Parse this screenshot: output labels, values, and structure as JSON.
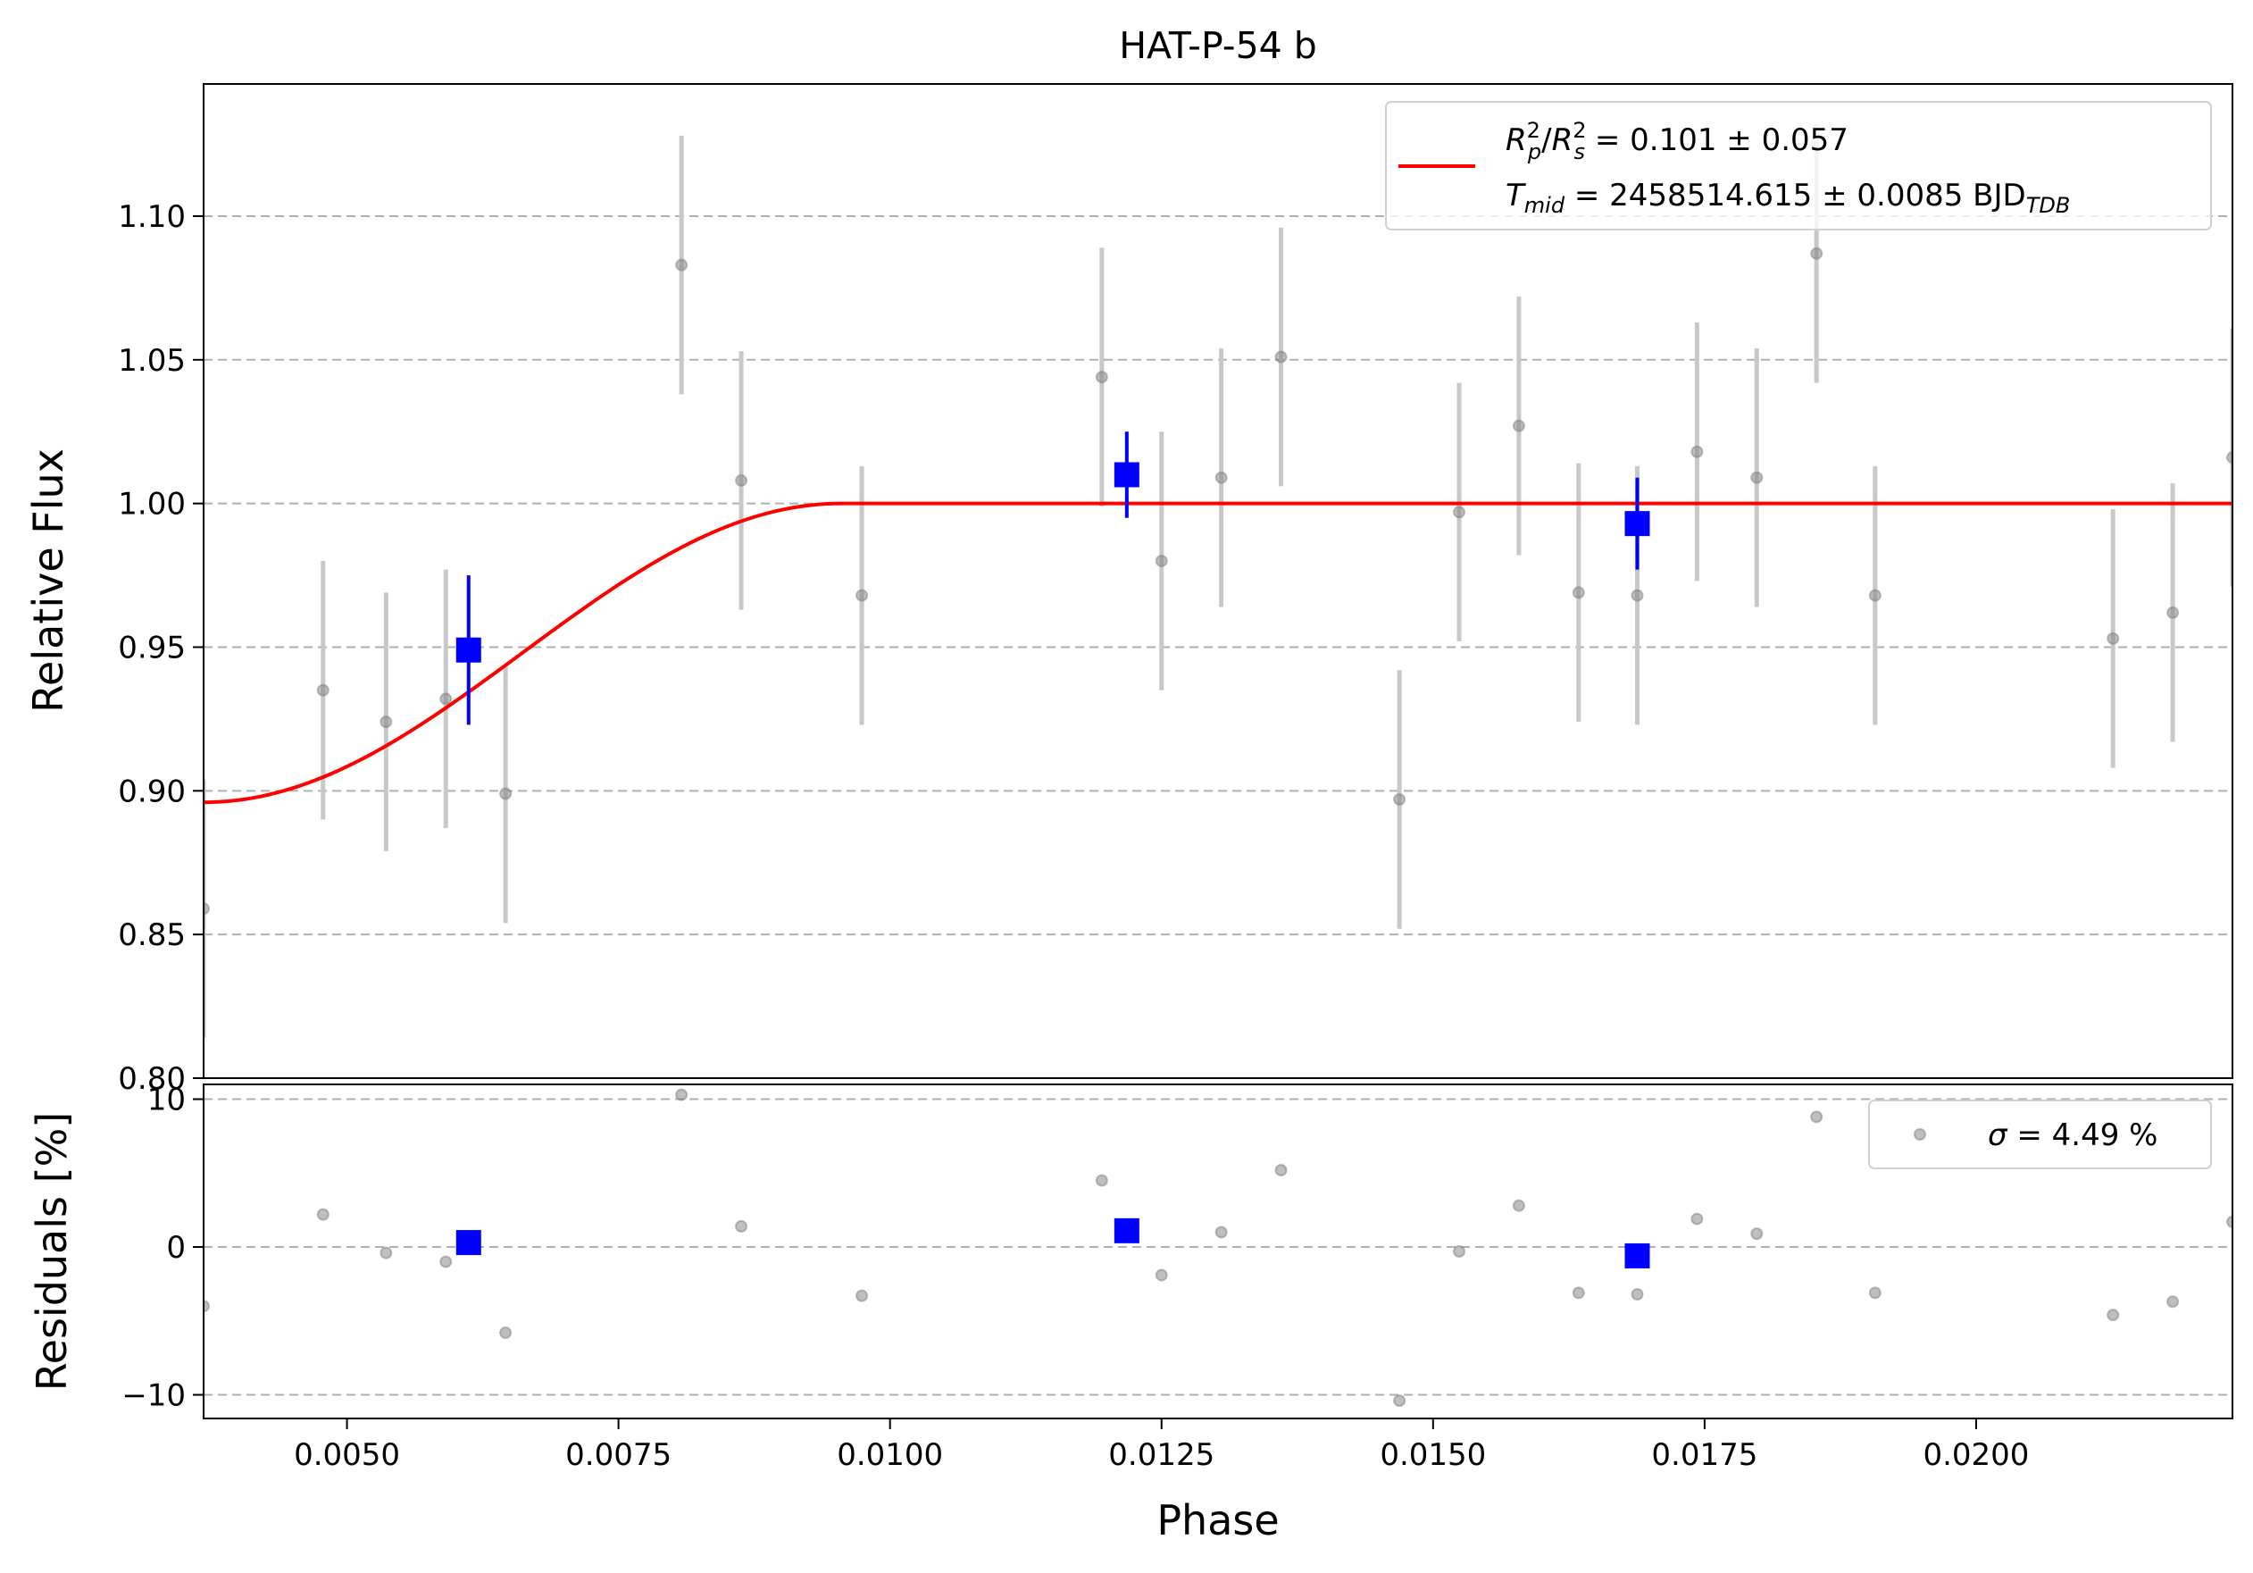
{
  "chart_data": [
    {
      "type": "scatter",
      "panel": "main",
      "title": "HAT-P-54 b",
      "xlabel": "",
      "ylabel": "Relative Flux",
      "xlim": [
        0.00368,
        0.02236
      ],
      "ylim": [
        0.8,
        1.146
      ],
      "yticks": [
        0.8,
        0.85,
        0.9,
        0.95,
        1.0,
        1.05,
        1.1
      ],
      "ytick_labels": [
        "0.80",
        "0.85",
        "0.90",
        "0.95",
        "1.00",
        "1.05",
        "1.10"
      ],
      "grid": "y-dashed",
      "legend_position": "top-right",
      "legend": {
        "line1": {
          "ratio_label_R": "R",
          "ratio_label_p": "p",
          "ratio_label_s": "s",
          "exp": "2",
          "slash": "/",
          "text": " = 0.101 ± 0.057"
        },
        "line2": {
          "T": "T",
          "mid": "mid",
          "text": " = 2458514.615 ± 0.0085 BJD",
          "sub": "TDB"
        }
      },
      "colors": {
        "data": "#808080",
        "error": "#c8c8c8",
        "binned": "#0000ff",
        "model": "#ff0000"
      },
      "series": [
        {
          "kind": "data",
          "points": [
            {
              "x": 0.00368,
              "y": 0.859,
              "err": 0.045
            },
            {
              "x": 0.00478,
              "y": 0.935,
              "err": 0.045
            },
            {
              "x": 0.00536,
              "y": 0.924,
              "err": 0.045
            },
            {
              "x": 0.00591,
              "y": 0.932,
              "err": 0.045
            },
            {
              "x": 0.00646,
              "y": 0.899,
              "err": 0.045
            },
            {
              "x": 0.00808,
              "y": 1.083,
              "err": 0.045
            },
            {
              "x": 0.00863,
              "y": 1.008,
              "err": 0.045
            },
            {
              "x": 0.00974,
              "y": 0.968,
              "err": 0.045
            },
            {
              "x": 0.01195,
              "y": 1.044,
              "err": 0.045
            },
            {
              "x": 0.0125,
              "y": 0.98,
              "err": 0.045
            },
            {
              "x": 0.01305,
              "y": 1.009,
              "err": 0.045
            },
            {
              "x": 0.0136,
              "y": 1.051,
              "err": 0.045
            },
            {
              "x": 0.01469,
              "y": 0.897,
              "err": 0.045
            },
            {
              "x": 0.01524,
              "y": 0.997,
              "err": 0.045
            },
            {
              "x": 0.01579,
              "y": 1.027,
              "err": 0.045
            },
            {
              "x": 0.01634,
              "y": 0.969,
              "err": 0.045
            },
            {
              "x": 0.01688,
              "y": 0.968,
              "err": 0.045
            },
            {
              "x": 0.01743,
              "y": 1.018,
              "err": 0.045
            },
            {
              "x": 0.01798,
              "y": 1.009,
              "err": 0.045
            },
            {
              "x": 0.01853,
              "y": 1.087,
              "err": 0.045
            },
            {
              "x": 0.01907,
              "y": 0.968,
              "err": 0.045
            },
            {
              "x": 0.02126,
              "y": 0.953,
              "err": 0.045
            },
            {
              "x": 0.02181,
              "y": 0.962,
              "err": 0.045
            },
            {
              "x": 0.02236,
              "y": 1.016,
              "err": 0.045
            }
          ]
        },
        {
          "kind": "binned",
          "points": [
            {
              "x": 0.00612,
              "y": 0.949,
              "err": 0.026
            },
            {
              "x": 0.01218,
              "y": 1.01,
              "err": 0.015
            },
            {
              "x": 0.01688,
              "y": 0.993,
              "err": 0.016
            }
          ]
        },
        {
          "kind": "model",
          "transit_depth": 0.104,
          "egress_end": 0.00955,
          "curve_start": 0.00368
        }
      ]
    },
    {
      "type": "scatter",
      "panel": "residuals",
      "xlabel": "Phase",
      "ylabel": "Residuals [%]",
      "xlim": [
        0.00368,
        0.02236
      ],
      "ylim": [
        -11.6,
        11.0
      ],
      "yticks": [
        -10,
        0,
        10
      ],
      "ytick_labels": [
        "−10",
        "0",
        "10"
      ],
      "xticks": [
        0.005,
        0.0075,
        0.01,
        0.0125,
        0.015,
        0.0175,
        0.02
      ],
      "xtick_labels": [
        "0.0050",
        "0.0075",
        "0.0100",
        "0.0125",
        "0.0150",
        "0.0175",
        "0.0200"
      ],
      "grid": "y-dashed",
      "legend_position": "top-right",
      "legend": {
        "sigma": "σ",
        "text": " = 4.49 %"
      },
      "series": [
        {
          "kind": "data",
          "points": [
            {
              "x": 0.00368,
              "y": -4.0
            },
            {
              "x": 0.00478,
              "y": 2.2
            },
            {
              "x": 0.00536,
              "y": -0.4
            },
            {
              "x": 0.00591,
              "y": -1.0
            },
            {
              "x": 0.00646,
              "y": -5.8
            },
            {
              "x": 0.00808,
              "y": 10.3
            },
            {
              "x": 0.00863,
              "y": 1.4
            },
            {
              "x": 0.00974,
              "y": -3.3
            },
            {
              "x": 0.01195,
              "y": 4.5
            },
            {
              "x": 0.0125,
              "y": -1.9
            },
            {
              "x": 0.01305,
              "y": 1.0
            },
            {
              "x": 0.0136,
              "y": 5.2
            },
            {
              "x": 0.01469,
              "y": -10.4
            },
            {
              "x": 0.01524,
              "y": -0.3
            },
            {
              "x": 0.01579,
              "y": 2.8
            },
            {
              "x": 0.01634,
              "y": -3.1
            },
            {
              "x": 0.01688,
              "y": -3.2
            },
            {
              "x": 0.01743,
              "y": 1.9
            },
            {
              "x": 0.01798,
              "y": 0.9
            },
            {
              "x": 0.01853,
              "y": 8.8
            },
            {
              "x": 0.01907,
              "y": -3.1
            },
            {
              "x": 0.02126,
              "y": -4.6
            },
            {
              "x": 0.02181,
              "y": -3.7
            },
            {
              "x": 0.02236,
              "y": 1.7
            }
          ]
        },
        {
          "kind": "binned",
          "points": [
            {
              "x": 0.00612,
              "y": 0.3
            },
            {
              "x": 0.01218,
              "y": 1.1
            },
            {
              "x": 0.01688,
              "y": -0.6
            }
          ]
        }
      ]
    }
  ]
}
